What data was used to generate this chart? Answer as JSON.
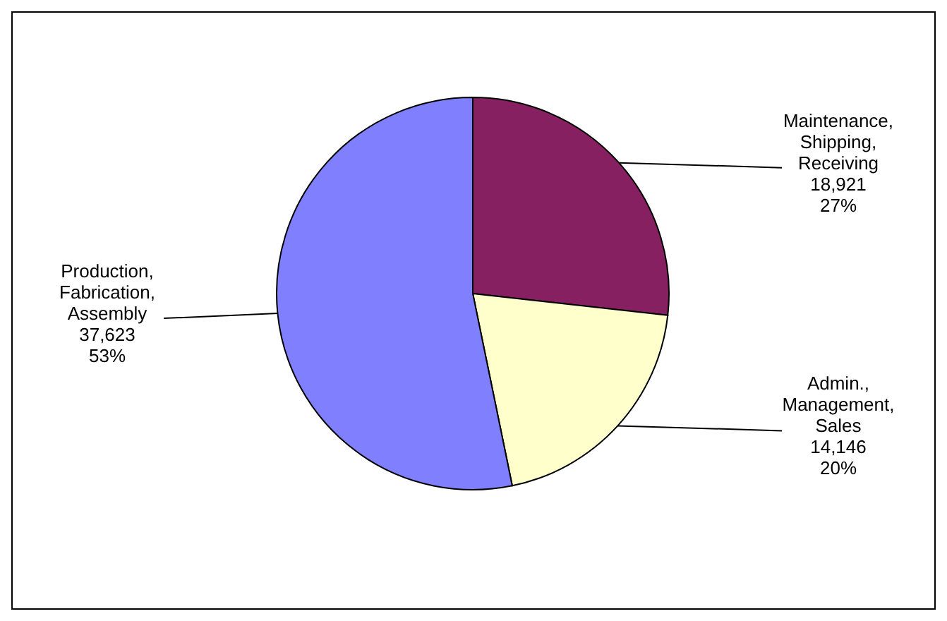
{
  "chart_data": {
    "type": "pie",
    "categories": [
      "Maintenance,\nShipping,\nReceiving",
      "Admin.,\nManagement,\nSales",
      "Production,\nFabrication,\nAssembly"
    ],
    "values": [
      18921,
      14146,
      37623
    ],
    "value_labels": [
      "18,921\n27%",
      "14,146\n20%",
      "37,623\n53%"
    ],
    "colors": [
      "#862060",
      "#ffffcc",
      "#8080ff"
    ]
  }
}
